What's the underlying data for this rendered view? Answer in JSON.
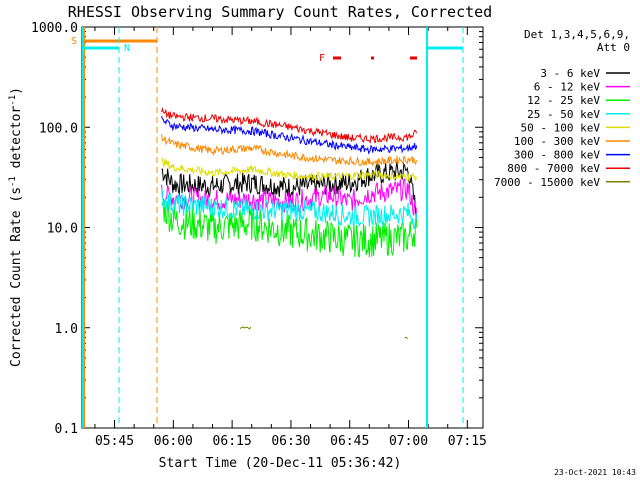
{
  "chart_data": {
    "type": "line",
    "title": "RHESSI Observing Summary Count Rates, Corrected",
    "xlabel": "Start Time (20-Dec-11 05:36:42)",
    "ylabel_main": "Corrected Count Rate (s",
    "ylabel_sup1": "-1",
    "ylabel_mid": " detector",
    "ylabel_sup2": "-1",
    "ylabel_end": ")",
    "y_scale": "log",
    "ylim": [
      0.1,
      1000
    ],
    "xlim": [
      "05:36:42",
      "07:19:00"
    ],
    "x_ticks": [
      "05:45",
      "06:00",
      "06:15",
      "06:30",
      "06:45",
      "07:00",
      "07:15"
    ],
    "y_ticks": [
      "0.1",
      "1.0",
      "10.0",
      "100.0",
      "1000.0"
    ],
    "legend_header": [
      "Det 1,3,4,5,6,9,",
      "Att 0"
    ],
    "legend_position": "right",
    "footer_date": "23-Oct-2021 10:43",
    "series": [
      {
        "name": "3 - 6 keV",
        "color": "#000000",
        "x": [
          "05:57",
          "06:00",
          "06:10",
          "06:20",
          "06:30",
          "06:40",
          "06:45",
          "06:50",
          "07:00",
          "07:02"
        ],
        "values": [
          38,
          27,
          26,
          28,
          25,
          27,
          28,
          33,
          37,
          14
        ]
      },
      {
        "name": "6 - 12 keV",
        "color": "#ff00ff",
        "x": [
          "05:57",
          "06:00",
          "06:10",
          "06:20",
          "06:30",
          "06:40",
          "06:45",
          "06:50",
          "07:00",
          "07:02"
        ],
        "values": [
          22,
          20,
          19,
          19,
          18,
          21,
          18,
          22,
          24,
          13
        ]
      },
      {
        "name": "12 - 25 keV",
        "color": "#00ee00",
        "x": [
          "05:57",
          "06:00",
          "06:10",
          "06:20",
          "06:30",
          "06:40",
          "06:45",
          "06:50",
          "07:00",
          "07:02"
        ],
        "values": [
          17,
          12,
          10,
          11,
          9,
          8,
          7.5,
          7.5,
          8,
          10
        ]
      },
      {
        "name": "25 - 50 keV",
        "color": "#00eeee",
        "x": [
          "05:57",
          "06:00",
          "06:10",
          "06:20",
          "06:30",
          "06:40",
          "06:45",
          "06:50",
          "07:00",
          "07:02"
        ],
        "values": [
          20,
          17,
          16,
          15,
          15,
          14,
          13,
          13,
          14,
          12
        ]
      },
      {
        "name": "50 - 100 keV",
        "color": "#dddd00",
        "x": [
          "05:57",
          "06:00",
          "06:10",
          "06:20",
          "06:30",
          "06:40",
          "06:45",
          "06:50",
          "07:00",
          "07:02"
        ],
        "values": [
          46,
          40,
          35,
          38,
          33,
          32,
          33,
          34,
          32,
          32
        ]
      },
      {
        "name": "100 - 300 keV",
        "color": "#ff8800",
        "x": [
          "05:57",
          "06:00",
          "06:10",
          "06:20",
          "06:30",
          "06:40",
          "06:45",
          "06:50",
          "07:00",
          "07:02"
        ],
        "values": [
          78,
          68,
          58,
          62,
          52,
          47,
          46,
          45,
          48,
          47
        ]
      },
      {
        "name": "300 - 800 keV",
        "color": "#0000ff",
        "x": [
          "05:57",
          "06:00",
          "06:10",
          "06:20",
          "06:30",
          "06:40",
          "06:45",
          "06:50",
          "07:00",
          "07:02"
        ],
        "values": [
          118,
          103,
          95,
          92,
          78,
          67,
          63,
          60,
          62,
          66
        ]
      },
      {
        "name": "800 - 7000 keV",
        "color": "#ee0000",
        "x": [
          "05:57",
          "06:00",
          "06:10",
          "06:20",
          "06:30",
          "06:40",
          "06:45",
          "06:50",
          "07:00",
          "07:02"
        ],
        "values": [
          142,
          128,
          122,
          115,
          100,
          85,
          78,
          77,
          80,
          87
        ]
      },
      {
        "name": "7000 - 15000 keV",
        "color": "#808000",
        "x": [
          "06:17",
          "06:20",
          "06:59",
          "07:00"
        ],
        "values": [
          1.0,
          1.0,
          0.8,
          1.0
        ]
      }
    ],
    "flags": [
      {
        "label": "S",
        "color": "#ff8800"
      },
      {
        "label": "N",
        "color": "#00eeee"
      },
      {
        "label": "F",
        "color": "#ee0000"
      }
    ]
  }
}
